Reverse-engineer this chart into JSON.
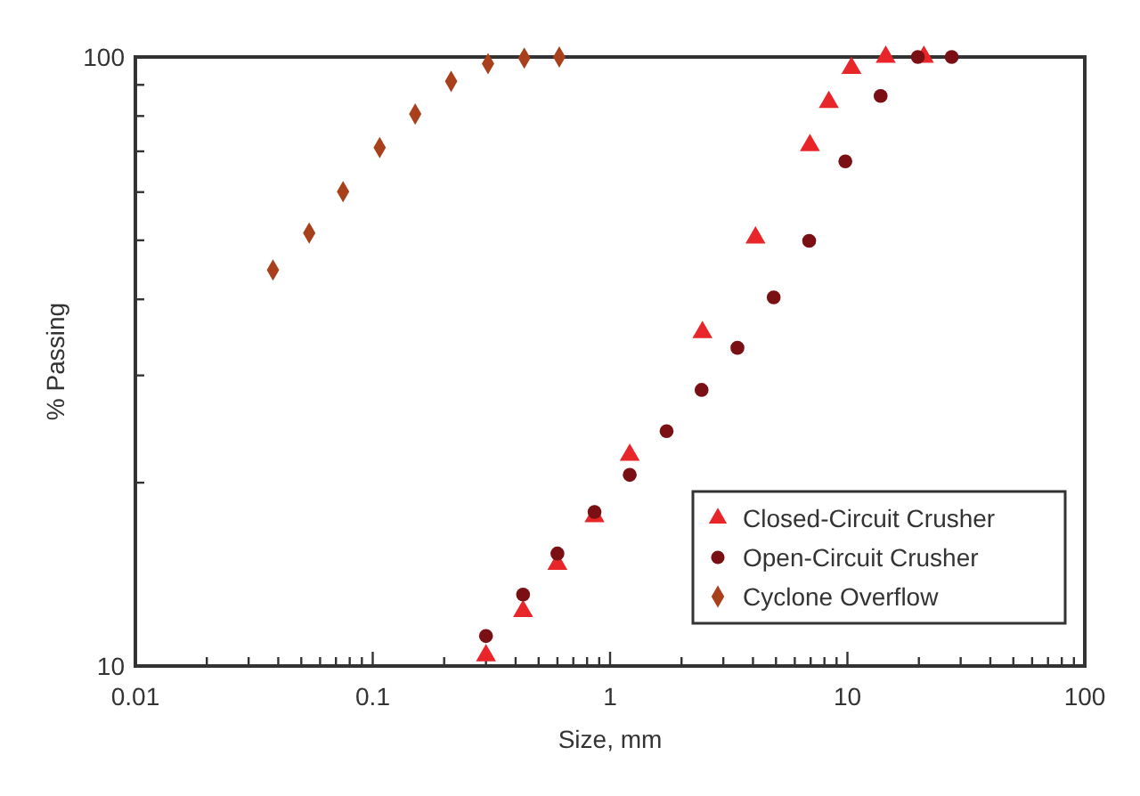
{
  "chart_data": {
    "type": "scatter",
    "xlabel": "Size, mm",
    "ylabel": "% Passing",
    "log": "xy",
    "xlim": [
      0.01,
      100
    ],
    "ylim": [
      10,
      100
    ],
    "xticks": [
      0.01,
      {
        "value": 0.02,
        "label": null
      },
      {
        "value": 0.03,
        "label": null
      },
      {
        "value": 0.04,
        "label": null
      },
      {
        "value": 0.05,
        "label": null
      },
      {
        "value": 0.06,
        "label": null
      },
      {
        "value": 0.07,
        "label": null
      },
      {
        "value": 0.08,
        "label": null
      },
      {
        "value": 0.09,
        "label": null
      },
      0.1,
      {
        "value": 0.2,
        "label": null
      },
      {
        "value": 0.3,
        "label": null
      },
      {
        "value": 0.4,
        "label": null
      },
      {
        "value": 0.5,
        "label": null
      },
      {
        "value": 0.6,
        "label": null
      },
      {
        "value": 0.7,
        "label": null
      },
      {
        "value": 0.8,
        "label": null
      },
      {
        "value": 0.9,
        "label": null
      },
      1,
      {
        "value": 2,
        "label": null
      },
      {
        "value": 3,
        "label": null
      },
      {
        "value": 4,
        "label": null
      },
      {
        "value": 5,
        "label": null
      },
      {
        "value": 6,
        "label": null
      },
      {
        "value": 7,
        "label": null
      },
      {
        "value": 8,
        "label": null
      },
      {
        "value": 9,
        "label": null
      },
      10,
      {
        "value": 20,
        "label": null
      },
      {
        "value": 30,
        "label": null
      },
      {
        "value": 40,
        "label": null
      },
      {
        "value": 50,
        "label": null
      },
      {
        "value": 60,
        "label": null
      },
      {
        "value": 70,
        "label": null
      },
      {
        "value": 80,
        "label": null
      },
      {
        "value": 90,
        "label": null
      },
      100
    ],
    "yticks": [
      10,
      {
        "value": 20,
        "label": null
      },
      {
        "value": 30,
        "label": null
      },
      {
        "value": 40,
        "label": null
      },
      {
        "value": 50,
        "label": null
      },
      {
        "value": 60,
        "label": null
      },
      {
        "value": 70,
        "label": null
      },
      {
        "value": 80,
        "label": null
      },
      {
        "value": 90,
        "label": null
      },
      100
    ],
    "grid": false,
    "legend": "bottom right",
    "series": [
      {
        "name": "Closed-Circuit Crusher",
        "color": "#e8262a",
        "marker": "triangle",
        "x": [
          0.3,
          0.43,
          0.6,
          0.86,
          1.21,
          2.45,
          4.1,
          6.95,
          8.35,
          10.4,
          14.5,
          21
        ],
        "values": [
          10.4,
          12.3,
          14.7,
          17.6,
          22.2,
          35.3,
          50.5,
          71.6,
          84.3,
          95.9,
          100,
          100
        ]
      },
      {
        "name": "Open-Circuit Crusher",
        "color": "#7a1014",
        "marker": "circle",
        "x": [
          0.3,
          0.43,
          0.6,
          0.86,
          1.21,
          1.73,
          2.43,
          3.44,
          4.89,
          6.9,
          9.8,
          13.8,
          19.8,
          27.5
        ],
        "values": [
          11.2,
          13.1,
          15.3,
          17.9,
          20.6,
          24.3,
          28.4,
          33.3,
          40.3,
          49.9,
          67.4,
          86.3,
          100,
          100
        ]
      },
      {
        "name": "Cyclone Overflow",
        "color": "#a8401c",
        "marker": "diamond",
        "x": [
          0.038,
          0.054,
          0.075,
          0.107,
          0.151,
          0.214,
          0.306,
          0.435,
          0.611
        ],
        "values": [
          44.7,
          51.4,
          60.1,
          71,
          80.6,
          91.2,
          97.5,
          99.6,
          100
        ]
      }
    ]
  }
}
